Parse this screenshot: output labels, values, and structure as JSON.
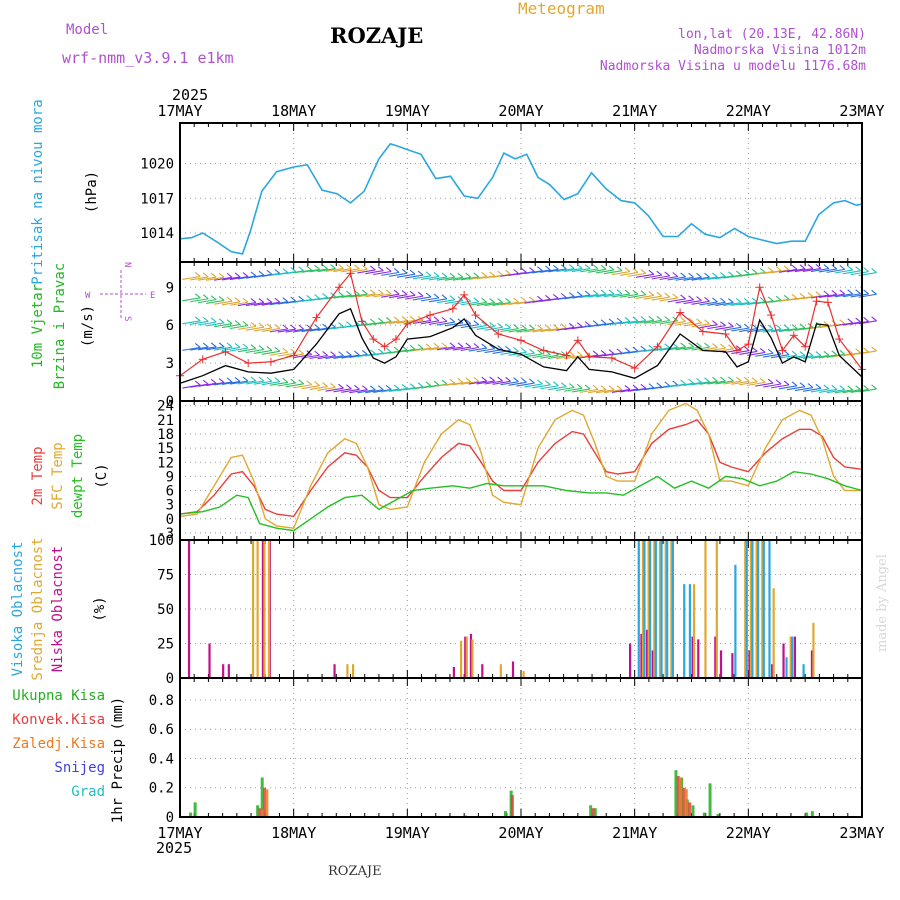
{
  "header": {
    "model_label": "Model",
    "model_name": "wrf-nmm_v3.9.1 e1km",
    "station": "ROZAJE",
    "meteogram_label": "Meteogram",
    "lonlat": "lon,lat (20.13E, 42.86N)",
    "altitude": "Nadmorska Visina 1012m",
    "model_altitude": "Nadmorska Visina u modelu 1176.68m",
    "year": "2025",
    "footer_station": "ROZAJE",
    "credit": "made by Angel"
  },
  "colors": {
    "pressure": "#2aa7e0",
    "wind_label": "#22b822",
    "wind_label2": "#22b822",
    "t2m": "#e8403c",
    "sfc": "#e0a830",
    "dewpt": "#22c022",
    "high_cloud": "#2aa7e0",
    "mid_cloud": "#e0a830",
    "low_cloud": "#c0108c",
    "total_precip": "#20b020",
    "conv_precip": "#e83c3c",
    "frz_precip": "#f07820",
    "snow": "#4040e0",
    "graupel": "#20c0c0",
    "wind_speed": "#000000",
    "gust": "#e83030",
    "purple_text": "#b050d0"
  },
  "chart_data": [
    {
      "type": "line",
      "panel": "pressure",
      "ylabel_left": "Pritisak na nivou mora",
      "unit": "(hPa)",
      "ylim": [
        1011.5,
        1023.5
      ],
      "yticks": [
        1014,
        1017,
        1020
      ],
      "x_dates": [
        "17MAY",
        "18MAY",
        "19MAY",
        "20MAY",
        "21MAY",
        "22MAY",
        "23MAY"
      ],
      "x_range_days": [
        0,
        6
      ],
      "series": [
        {
          "color_key": "pressure",
          "x": [
            0,
            0.1,
            0.2,
            0.33,
            0.45,
            0.55,
            0.62,
            0.72,
            0.85,
            1.0,
            1.12,
            1.25,
            1.38,
            1.5,
            1.62,
            1.75,
            1.85,
            1.92,
            2.0,
            2.12,
            2.25,
            2.38,
            2.5,
            2.62,
            2.75,
            2.85,
            2.95,
            3.05,
            3.15,
            3.25,
            3.38,
            3.5,
            3.62,
            3.75,
            3.88,
            4.0,
            4.12,
            4.25,
            4.38,
            4.5,
            4.62,
            4.75,
            4.88,
            5.0,
            5.12,
            5.25,
            5.38,
            5.5,
            5.62,
            5.75,
            5.85,
            5.95,
            6.0
          ],
          "y": [
            1013.5,
            1013.6,
            1014.0,
            1013.2,
            1012.4,
            1012.2,
            1014.2,
            1017.6,
            1019.3,
            1019.7,
            1019.9,
            1017.7,
            1017.4,
            1016.6,
            1017.6,
            1020.4,
            1021.7,
            1021.5,
            1021.2,
            1020.8,
            1018.7,
            1018.9,
            1017.2,
            1017.0,
            1018.8,
            1020.9,
            1020.4,
            1020.8,
            1018.8,
            1018.2,
            1016.9,
            1017.4,
            1019.2,
            1017.8,
            1016.8,
            1016.6,
            1015.5,
            1013.7,
            1013.7,
            1014.8,
            1013.9,
            1013.6,
            1014.4,
            1013.7,
            1013.4,
            1013.1,
            1013.3,
            1013.3,
            1015.6,
            1016.6,
            1016.8,
            1016.4,
            1016.5
          ]
        }
      ]
    },
    {
      "type": "line",
      "panel": "wind",
      "ylabel_left": [
        "10m Vjetar",
        "Brzina i Pravac"
      ],
      "unit": "(m/s)",
      "compass": {
        "n": "N",
        "s": "S",
        "w": "W",
        "e": "E"
      },
      "ylim": [
        0,
        11
      ],
      "yticks": [
        0,
        3,
        6,
        9
      ],
      "series": [
        {
          "name_hidden": "speed",
          "color_key": "wind_speed",
          "x": [
            0,
            0.2,
            0.4,
            0.6,
            0.8,
            1.0,
            1.2,
            1.4,
            1.5,
            1.6,
            1.7,
            1.8,
            1.9,
            2.0,
            2.2,
            2.4,
            2.5,
            2.6,
            2.8,
            3.0,
            3.2,
            3.4,
            3.5,
            3.6,
            3.8,
            4.0,
            4.2,
            4.4,
            4.6,
            4.8,
            4.9,
            5.0,
            5.1,
            5.2,
            5.3,
            5.4,
            5.5,
            5.6,
            5.7,
            5.8,
            6.0
          ],
          "y": [
            1.4,
            2.0,
            2.8,
            2.3,
            2.2,
            2.5,
            4.5,
            6.9,
            7.3,
            5.0,
            3.4,
            3.0,
            3.5,
            4.9,
            5.1,
            5.8,
            6.5,
            5.2,
            4.1,
            3.7,
            2.7,
            2.4,
            3.5,
            2.5,
            2.3,
            1.8,
            2.8,
            5.3,
            4.0,
            3.9,
            2.7,
            3.1,
            6.4,
            5.0,
            3.0,
            3.5,
            3.1,
            6.1,
            6.0,
            3.6,
            1.9
          ]
        },
        {
          "name_hidden": "gust",
          "color_key": "gust",
          "x": [
            0,
            0.2,
            0.4,
            0.6,
            0.8,
            1.0,
            1.2,
            1.4,
            1.5,
            1.6,
            1.7,
            1.8,
            1.9,
            2.0,
            2.2,
            2.4,
            2.5,
            2.6,
            2.8,
            3.0,
            3.2,
            3.4,
            3.5,
            3.6,
            3.8,
            4.0,
            4.2,
            4.4,
            4.6,
            4.8,
            4.9,
            5.0,
            5.1,
            5.2,
            5.3,
            5.4,
            5.5,
            5.6,
            5.7,
            5.8,
            6.0
          ],
          "y": [
            2.0,
            3.3,
            3.9,
            3.0,
            3.1,
            3.6,
            6.6,
            9.0,
            10.1,
            6.3,
            4.9,
            4.3,
            4.9,
            6.1,
            6.8,
            7.3,
            8.4,
            6.8,
            5.3,
            4.8,
            4.0,
            3.6,
            4.8,
            3.5,
            3.4,
            2.6,
            4.3,
            7.0,
            5.5,
            5.3,
            4.0,
            4.5,
            9.0,
            6.8,
            4.0,
            5.2,
            4.3,
            7.9,
            7.8,
            4.9,
            2.5
          ]
        }
      ]
    },
    {
      "type": "line",
      "panel": "temperature",
      "ylabels_left": [
        "2m Temp",
        "SFC Temp",
        "dewpt Temp"
      ],
      "unit": "(C)",
      "ylim": [
        -4.5,
        25
      ],
      "yticks": [
        -3,
        0,
        3,
        6,
        9,
        12,
        15,
        18,
        21,
        24
      ],
      "series": [
        {
          "color_key": "t2m",
          "x": [
            0,
            0.15,
            0.3,
            0.45,
            0.55,
            0.65,
            0.75,
            0.85,
            1.0,
            1.15,
            1.3,
            1.45,
            1.55,
            1.65,
            1.75,
            1.85,
            2.0,
            2.15,
            2.3,
            2.45,
            2.55,
            2.65,
            2.75,
            2.85,
            3.0,
            3.15,
            3.3,
            3.45,
            3.55,
            3.65,
            3.75,
            3.85,
            4.0,
            4.15,
            4.3,
            4.45,
            4.55,
            4.65,
            4.75,
            4.85,
            5.0,
            5.15,
            5.3,
            5.45,
            5.55,
            5.65,
            5.75,
            5.85,
            6.0
          ],
          "y": [
            1,
            1.5,
            5,
            9.5,
            10,
            7,
            2,
            1,
            0.5,
            6,
            11,
            14,
            13.5,
            11,
            6,
            4.5,
            4.5,
            9,
            13,
            16,
            15.5,
            12,
            8,
            6,
            6,
            12,
            16,
            18.5,
            18,
            14,
            10,
            9.5,
            10,
            16,
            19,
            20,
            21,
            18,
            12,
            11,
            10,
            14,
            17,
            19,
            19,
            17.5,
            13,
            11,
            10.5
          ]
        },
        {
          "color_key": "sfc",
          "x": [
            0,
            0.15,
            0.3,
            0.45,
            0.55,
            0.65,
            0.75,
            0.85,
            1.0,
            1.15,
            1.3,
            1.45,
            1.55,
            1.65,
            1.75,
            1.85,
            2.0,
            2.15,
            2.3,
            2.45,
            2.55,
            2.65,
            2.75,
            2.85,
            3.0,
            3.15,
            3.3,
            3.45,
            3.55,
            3.65,
            3.75,
            3.85,
            4.0,
            4.15,
            4.3,
            4.45,
            4.55,
            4.65,
            4.75,
            4.85,
            5.0,
            5.15,
            5.3,
            5.45,
            5.55,
            5.65,
            5.75,
            5.85,
            6.0
          ],
          "y": [
            0.5,
            1,
            7,
            13,
            13.5,
            8,
            0,
            -1.5,
            -2,
            7,
            14,
            17,
            16,
            11,
            3,
            2,
            2.5,
            12,
            18,
            21,
            20,
            14,
            5,
            3.5,
            3,
            15,
            21,
            23,
            22,
            16,
            9,
            8,
            8,
            18,
            23,
            24.5,
            23,
            18,
            8,
            8,
            7,
            15,
            21,
            23,
            22,
            17,
            9,
            6,
            6
          ]
        },
        {
          "color_key": "dewpt",
          "x": [
            0,
            0.2,
            0.35,
            0.5,
            0.6,
            0.7,
            0.85,
            1.0,
            1.15,
            1.3,
            1.45,
            1.6,
            1.75,
            1.9,
            2.05,
            2.2,
            2.4,
            2.55,
            2.7,
            2.85,
            3.0,
            3.2,
            3.4,
            3.6,
            3.75,
            3.9,
            4.05,
            4.2,
            4.35,
            4.5,
            4.65,
            4.8,
            4.95,
            5.1,
            5.25,
            5.4,
            5.55,
            5.7,
            5.85,
            6.0
          ],
          "y": [
            1,
            1.5,
            2.5,
            5,
            4.5,
            -1,
            -2,
            -2.5,
            0,
            2.5,
            4.5,
            5,
            2,
            4,
            6,
            6.5,
            7,
            6.5,
            7.5,
            7,
            7,
            7,
            6,
            5.5,
            5.5,
            5,
            7,
            9,
            6.5,
            8,
            6.5,
            9,
            8.5,
            7,
            8,
            10,
            9.5,
            8.5,
            7,
            6
          ]
        }
      ]
    },
    {
      "type": "bar",
      "panel": "clouds",
      "ylabels_left": [
        "Visoka Oblacnost",
        "Srednja Oblacnost",
        "Niska Oblacnost"
      ],
      "unit": "(%)",
      "ylim": [
        0,
        100
      ],
      "yticks": [
        0,
        25,
        50,
        75,
        100
      ],
      "series": [
        {
          "color_key": "low_cloud",
          "x": [
            0.07,
            0.25,
            0.37,
            0.42,
            0.72,
            0.78,
            1.35,
            2.4,
            2.5,
            2.55,
            2.65,
            2.92,
            3.95,
            4.05,
            4.1,
            4.15,
            4.5,
            4.55,
            4.7,
            4.75,
            4.85,
            5.0,
            5.2,
            5.3,
            5.4,
            5.55
          ],
          "y": [
            100,
            25,
            10,
            10,
            100,
            100,
            10,
            8,
            30,
            32,
            10,
            12,
            25,
            32,
            35,
            20,
            30,
            28,
            30,
            20,
            18,
            20,
            10,
            25,
            30,
            20
          ]
        },
        {
          "color_key": "mid_cloud",
          "x": [
            0.62,
            0.66,
            0.72,
            0.76,
            1.45,
            1.5,
            2.45,
            2.5,
            2.55,
            2.8,
            3.0,
            4.05,
            4.1,
            4.15,
            4.2,
            4.25,
            4.3,
            4.5,
            4.6,
            4.7,
            4.95,
            5.0,
            5.05,
            5.1,
            5.2,
            5.35,
            5.55
          ],
          "y": [
            100,
            100,
            100,
            100,
            10,
            10,
            27,
            30,
            28,
            10,
            5,
            100,
            100,
            100,
            100,
            100,
            100,
            68,
            100,
            100,
            100,
            100,
            100,
            100,
            65,
            30,
            40
          ]
        },
        {
          "color_key": "high_cloud",
          "x": [
            4.0,
            4.05,
            4.1,
            4.15,
            4.2,
            4.25,
            4.3,
            4.4,
            4.45,
            4.85,
            4.95,
            5.0,
            5.05,
            5.1,
            5.15,
            5.3,
            5.35,
            5.45
          ],
          "y": [
            100,
            100,
            100,
            100,
            100,
            100,
            100,
            68,
            68,
            82,
            100,
            100,
            100,
            100,
            100,
            15,
            30,
            10
          ]
        }
      ]
    },
    {
      "type": "bar",
      "panel": "precip",
      "ylabels_left": [
        "Ukupna Kisa",
        "Konvek.Kisa",
        "Zaledj.Kisa",
        "Snijeg",
        "Grad"
      ],
      "unit": "1hr Precip (mm)",
      "ylim": [
        0,
        0.95
      ],
      "yticks": [
        0,
        0.2,
        0.4,
        0.6,
        0.8
      ],
      "series": [
        {
          "color_key": "total_precip",
          "x": [
            0.08,
            0.12,
            0.67,
            0.71,
            2.5,
            2.85,
            2.9,
            3.6,
            3.64,
            4.35,
            4.4,
            4.45,
            4.5,
            4.6,
            4.65,
            4.72,
            5.5,
            5.55
          ],
          "y": [
            0.03,
            0.1,
            0.08,
            0.27,
            0.01,
            0.04,
            0.18,
            0.08,
            0.06,
            0.32,
            0.27,
            0.12,
            0.08,
            0.03,
            0.23,
            0.02,
            0.03,
            0.04
          ]
        },
        {
          "color_key": "conv_precip",
          "x": [
            0.68,
            0.72,
            2.9,
            3.61,
            4.36,
            4.41,
            4.46
          ],
          "y": [
            0.06,
            0.2,
            0.15,
            0.06,
            0.28,
            0.2,
            0.1
          ]
        },
        {
          "color_key": "frz_precip",
          "x": [
            0.69,
            0.73,
            4.37,
            4.42
          ],
          "y": [
            0.05,
            0.19,
            0.27,
            0.19
          ]
        }
      ]
    }
  ]
}
